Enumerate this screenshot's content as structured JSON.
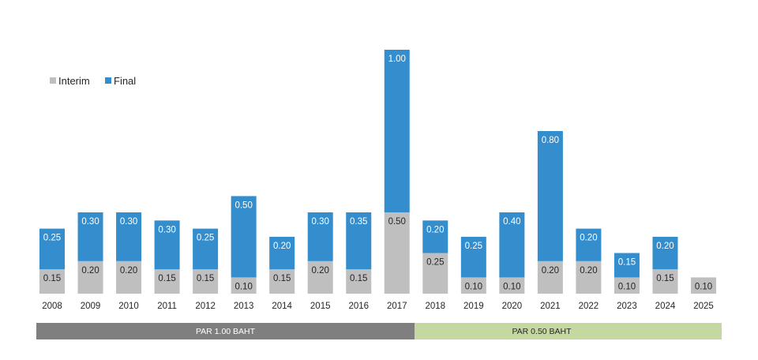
{
  "chart_data": {
    "type": "bar",
    "stacked": true,
    "title": "",
    "xlabel": "",
    "ylabel": "",
    "ylim": [
      0,
      1.5
    ],
    "grid": false,
    "legend_position": "top-left",
    "categories": [
      "2008",
      "2009",
      "2010",
      "2011",
      "2012",
      "2013",
      "2014",
      "2015",
      "2016",
      "2017",
      "2018",
      "2019",
      "2020",
      "2021",
      "2022",
      "2023",
      "2024",
      "2025"
    ],
    "series": [
      {
        "name": "Interim",
        "color": "#BFBFBF",
        "label_color": "#262626",
        "values": [
          0.15,
          0.2,
          0.2,
          0.15,
          0.15,
          0.1,
          0.15,
          0.2,
          0.15,
          0.5,
          0.25,
          0.1,
          0.1,
          0.2,
          0.2,
          0.1,
          0.15,
          0.1
        ]
      },
      {
        "name": "Final",
        "color": "#348ECD",
        "label_color": "#FFFFFF",
        "values": [
          0.25,
          0.3,
          0.3,
          0.3,
          0.25,
          0.5,
          0.2,
          0.3,
          0.35,
          1.0,
          0.2,
          0.25,
          0.4,
          0.8,
          0.2,
          0.15,
          0.2,
          null
        ]
      }
    ],
    "periods": [
      {
        "label": "PAR 1.00 BAHT",
        "from": "2008",
        "to": "2017",
        "color": "#7F7F7F",
        "text_color": "#FFFFFF"
      },
      {
        "label": "PAR 0.50 BAHT",
        "from": "2018",
        "to": "2025",
        "color": "#C5D89F",
        "text_color": "#262626"
      }
    ]
  }
}
